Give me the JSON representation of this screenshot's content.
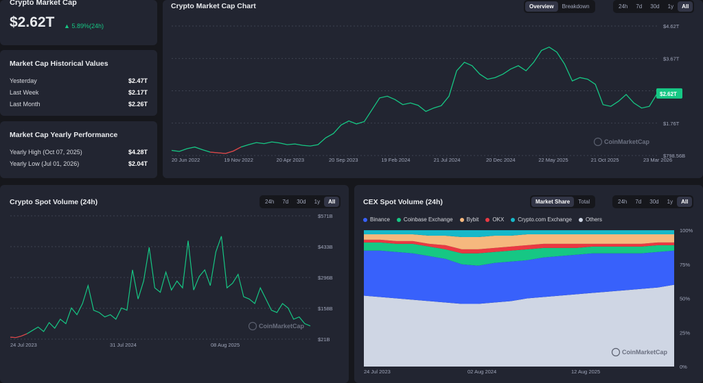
{
  "summary": {
    "title": "Crypto Market Cap",
    "value": "$2.62T",
    "change": "5.89%(24h)"
  },
  "historical": {
    "title": "Market Cap Historical Values",
    "rows": [
      {
        "label": "Yesterday",
        "value": "$2.47T"
      },
      {
        "label": "Last Week",
        "value": "$2.17T"
      },
      {
        "label": "Last Month",
        "value": "$2.26T"
      }
    ]
  },
  "yearly": {
    "title": "Market Cap Yearly Performance",
    "rows": [
      {
        "label": "Yearly High (Oct 07, 2025)",
        "value": "$4.28T"
      },
      {
        "label": "Yearly Low (Jul 01, 2026)",
        "value": "$2.04T"
      }
    ]
  },
  "main_chart": {
    "title": "Crypto Market Cap Chart",
    "views": [
      "Overview",
      "Breakdown"
    ],
    "active_view": "Overview",
    "ranges": [
      "24h",
      "7d",
      "30d",
      "1y",
      "All"
    ],
    "active_range": "All",
    "watermark": "CoinMarketCap",
    "current_label": "$2.62T",
    "line_color": "#16c784",
    "down_color": "#ea3943"
  },
  "spot_volume": {
    "title": "Crypto Spot Volume (24h)",
    "ranges": [
      "24h",
      "7d",
      "30d",
      "1y",
      "All"
    ],
    "active_range": "All",
    "watermark": "CoinMarketCap"
  },
  "cex_volume": {
    "title": "CEX Spot Volume (24h)",
    "views": [
      "Market Share",
      "Total"
    ],
    "active_view": "Market Share",
    "ranges": [
      "24h",
      "7d",
      "30d",
      "1y",
      "All"
    ],
    "active_range": "All",
    "watermark": "CoinMarketCap",
    "legend": [
      {
        "name": "Binance",
        "color": "#3861fb"
      },
      {
        "name": "Coinbase Exchange",
        "color": "#16c784"
      },
      {
        "name": "Bybit",
        "color": "#f6b87e"
      },
      {
        "name": "OKX",
        "color": "#ea3943"
      },
      {
        "name": "Crypto.com Exchange",
        "color": "#16b8c9"
      },
      {
        "name": "Others",
        "color": "#cfd6e4"
      }
    ]
  },
  "chart_data": [
    {
      "type": "line",
      "title": "Crypto Market Cap Chart",
      "x_tick_labels": [
        "20 Jun 2022",
        "19 Nov 2022",
        "20 Apr 2023",
        "20 Sep 2023",
        "19 Feb 2024",
        "21 Jul 2024",
        "20 Dec 2024",
        "22 May 2025",
        "21 Oct 2025",
        "23 Mar 2026"
      ],
      "y_tick_labels": [
        "$4.62T",
        "$3.67T",
        "$2.62T",
        "$1.76T",
        "$798.56B"
      ],
      "ylim": [
        0.79856,
        4.62
      ],
      "y_unit": "T",
      "values": [
        0.95,
        0.92,
        1.0,
        1.05,
        0.97,
        0.9,
        0.88,
        0.86,
        0.93,
        1.05,
        1.12,
        1.18,
        1.15,
        1.2,
        1.17,
        1.12,
        1.14,
        1.1,
        1.08,
        1.12,
        1.32,
        1.45,
        1.7,
        1.82,
        1.73,
        1.8,
        2.15,
        2.5,
        2.55,
        2.45,
        2.3,
        2.35,
        2.28,
        2.1,
        2.2,
        2.27,
        2.55,
        3.3,
        3.55,
        3.45,
        3.2,
        3.05,
        3.1,
        3.2,
        3.35,
        3.45,
        3.3,
        3.55,
        3.9,
        4.0,
        3.85,
        3.5,
        3.0,
        3.1,
        3.05,
        2.9,
        2.3,
        2.25,
        2.4,
        2.6,
        2.35,
        2.2,
        2.25,
        2.62
      ],
      "grid": true
    },
    {
      "type": "line",
      "title": "Crypto Spot Volume (24h)",
      "x_tick_labels": [
        "24 Jul 2023",
        "31 Jul 2024",
        "08 Aug 2025"
      ],
      "y_tick_labels": [
        "$571B",
        "$433B",
        "$296B",
        "$158B",
        "$21B"
      ],
      "ylim": [
        21,
        571
      ],
      "y_unit": "B",
      "values": [
        30,
        28,
        35,
        45,
        60,
        75,
        55,
        95,
        70,
        110,
        90,
        160,
        130,
        180,
        260,
        150,
        140,
        120,
        130,
        110,
        160,
        150,
        330,
        200,
        280,
        430,
        250,
        230,
        320,
        240,
        280,
        250,
        460,
        240,
        300,
        330,
        260,
        410,
        480,
        250,
        270,
        310,
        210,
        200,
        180,
        250,
        200,
        150,
        140,
        180,
        160,
        110,
        120,
        90,
        80
      ],
      "grid": true
    },
    {
      "type": "area",
      "title": "CEX Spot Volume (24h)",
      "stacked": true,
      "x_tick_labels": [
        "24 Jul 2023",
        "02 Aug 2024",
        "12 Aug 2025"
      ],
      "y_tick_labels": [
        "100%",
        "75%",
        "50%",
        "25%",
        "0%"
      ],
      "ylim": [
        0,
        100
      ],
      "series": [
        {
          "name": "Others",
          "values": [
            52,
            51,
            50,
            49,
            48,
            47,
            46,
            46,
            47,
            48,
            50,
            51,
            52,
            53,
            54,
            55,
            56,
            57,
            58,
            60
          ]
        },
        {
          "name": "Binance",
          "values": [
            33,
            34,
            34,
            34,
            33,
            32,
            29,
            28,
            29,
            29,
            28,
            29,
            29,
            29,
            29,
            28,
            27,
            26,
            26,
            25
          ]
        },
        {
          "name": "Coinbase Exchange",
          "values": [
            6,
            6,
            6,
            7,
            7,
            7,
            8,
            9,
            8,
            8,
            8,
            7,
            6,
            5,
            5,
            5,
            5,
            5,
            5,
            4
          ]
        },
        {
          "name": "OKX",
          "values": [
            2,
            2,
            2,
            2,
            2,
            3,
            3,
            3,
            3,
            3,
            3,
            3,
            3,
            3,
            2,
            2,
            2,
            2,
            2,
            2
          ]
        },
        {
          "name": "Bybit",
          "values": [
            4,
            4,
            5,
            5,
            6,
            7,
            9,
            9,
            9,
            8,
            8,
            7,
            7,
            7,
            7,
            7,
            7,
            7,
            6,
            6
          ]
        },
        {
          "name": "Crypto.com Exchange",
          "values": [
            3,
            3,
            3,
            3,
            4,
            4,
            5,
            5,
            4,
            4,
            3,
            3,
            3,
            3,
            3,
            3,
            3,
            3,
            3,
            3
          ]
        }
      ]
    }
  ]
}
